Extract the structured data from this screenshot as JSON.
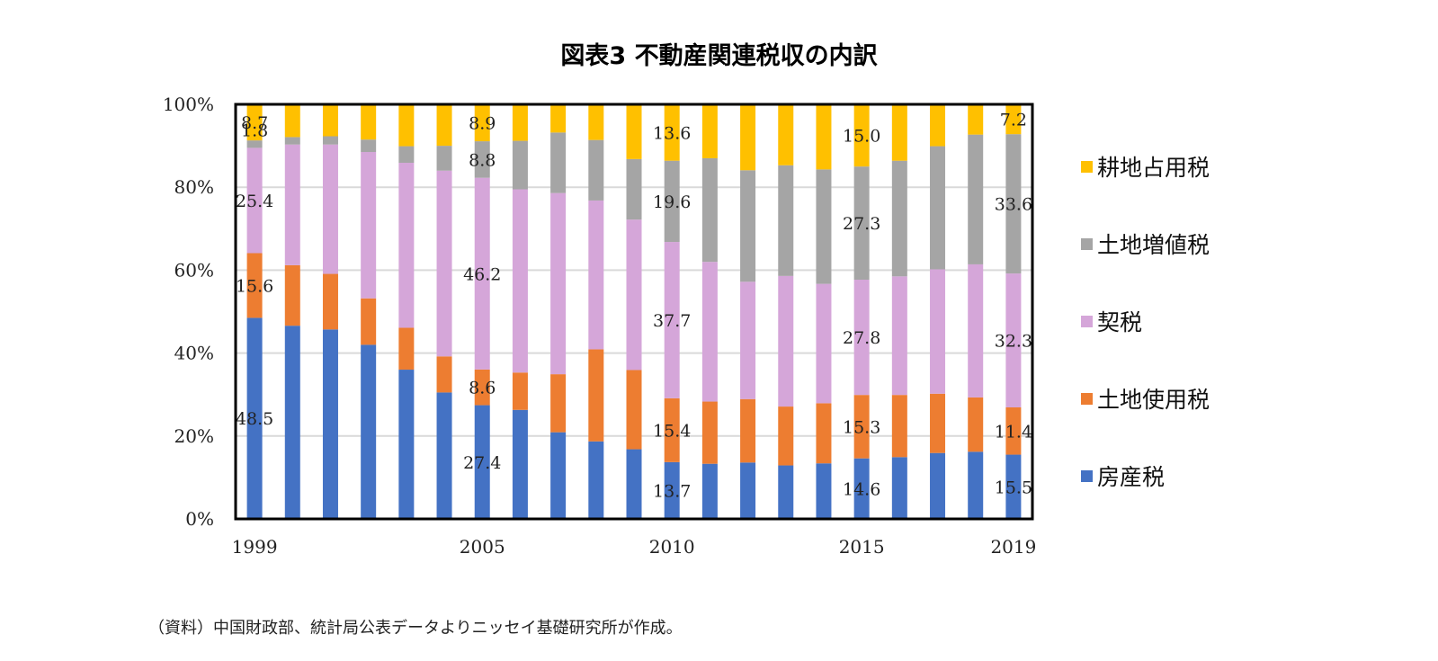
{
  "chart_data": {
    "type": "bar",
    "stacked": true,
    "normalized": true,
    "title": "図表3 不動産関連税収の内訳",
    "xlabel": "",
    "ylabel": "",
    "ylim": [
      0,
      100
    ],
    "yticks": [
      "0%",
      "20%",
      "40%",
      "60%",
      "80%",
      "100%"
    ],
    "categories": [
      "1999",
      "2000",
      "2001",
      "2002",
      "2003",
      "2004",
      "2005",
      "2006",
      "2007",
      "2008",
      "2009",
      "2010",
      "2011",
      "2012",
      "2013",
      "2014",
      "2015",
      "2016",
      "2017",
      "2018",
      "2019"
    ],
    "xtick_labels": {
      "1999": "1999",
      "2005": "2005",
      "2010": "2010",
      "2015": "2015",
      "2019": "2019"
    },
    "series": [
      {
        "name": "房産税",
        "color": "#4472C4",
        "values": [
          48.5,
          46.6,
          45.7,
          42.0,
          36.0,
          30.5,
          27.4,
          26.3,
          20.9,
          18.7,
          16.8,
          13.7,
          13.3,
          13.6,
          12.9,
          13.4,
          14.6,
          14.9,
          15.9,
          16.2,
          15.5
        ]
      },
      {
        "name": "土地使用税",
        "color": "#ED7D31",
        "values": [
          15.6,
          14.6,
          13.4,
          11.2,
          10.1,
          8.7,
          8.6,
          9.0,
          14.0,
          22.2,
          19.1,
          15.4,
          15.0,
          15.3,
          14.2,
          14.5,
          15.3,
          15.0,
          14.3,
          13.1,
          11.4
        ]
      },
      {
        "name": "契税",
        "color": "#D5A6D9",
        "values": [
          25.4,
          29.1,
          31.2,
          35.3,
          39.8,
          44.8,
          46.2,
          44.2,
          43.7,
          35.9,
          36.3,
          37.7,
          33.7,
          28.3,
          31.5,
          28.8,
          27.8,
          28.6,
          30.0,
          32.1,
          32.3
        ]
      },
      {
        "name": "土地増値税",
        "color": "#A5A5A5",
        "values": [
          1.8,
          1.8,
          2.0,
          3.0,
          4.0,
          6.0,
          8.8,
          11.7,
          14.6,
          14.6,
          14.6,
          19.6,
          25.0,
          26.9,
          26.7,
          27.6,
          27.3,
          27.9,
          29.7,
          31.3,
          33.6
        ]
      },
      {
        "name": "耕地占用税",
        "color": "#FFC000",
        "values": [
          8.7,
          7.9,
          7.7,
          8.5,
          10.1,
          10.0,
          8.9,
          8.8,
          6.8,
          8.6,
          13.2,
          13.6,
          13.0,
          15.9,
          14.7,
          15.7,
          15.0,
          13.6,
          10.1,
          7.3,
          7.2
        ]
      }
    ],
    "data_labels": [
      {
        "year": "1999",
        "series": 0,
        "text": "48.5"
      },
      {
        "year": "1999",
        "series": 1,
        "text": "15.6"
      },
      {
        "year": "1999",
        "series": 2,
        "text": "25.4"
      },
      {
        "year": "1999",
        "series": 3,
        "text": "1.8"
      },
      {
        "year": "1999",
        "series": 4,
        "text": "8.7"
      },
      {
        "year": "2005",
        "series": 0,
        "text": "27.4"
      },
      {
        "year": "2005",
        "series": 1,
        "text": "8.6"
      },
      {
        "year": "2005",
        "series": 2,
        "text": "46.2"
      },
      {
        "year": "2005",
        "series": 3,
        "text": "8.8"
      },
      {
        "year": "2005",
        "series": 4,
        "text": "8.9"
      },
      {
        "year": "2010",
        "series": 0,
        "text": "13.7"
      },
      {
        "year": "2010",
        "series": 1,
        "text": "15.4"
      },
      {
        "year": "2010",
        "series": 2,
        "text": "37.7"
      },
      {
        "year": "2010",
        "series": 3,
        "text": "19.6"
      },
      {
        "year": "2010",
        "series": 4,
        "text": "13.6"
      },
      {
        "year": "2015",
        "series": 0,
        "text": "14.6"
      },
      {
        "year": "2015",
        "series": 1,
        "text": "15.3"
      },
      {
        "year": "2015",
        "series": 2,
        "text": "27.8"
      },
      {
        "year": "2015",
        "series": 3,
        "text": "27.3"
      },
      {
        "year": "2015",
        "series": 4,
        "text": "15.0"
      },
      {
        "year": "2019",
        "series": 0,
        "text": "15.5"
      },
      {
        "year": "2019",
        "series": 1,
        "text": "11.4"
      },
      {
        "year": "2019",
        "series": 2,
        "text": "32.3"
      },
      {
        "year": "2019",
        "series": 3,
        "text": "33.6"
      },
      {
        "year": "2019",
        "series": 4,
        "text": "7.2"
      }
    ],
    "legend": {
      "position": "right",
      "order": [
        "耕地占用税",
        "土地増値税",
        "契税",
        "土地使用税",
        "房産税"
      ]
    },
    "grid": true
  },
  "source_note": "（資料）中国財政部、統計局公表データよりニッセイ基礎研究所が作成。"
}
